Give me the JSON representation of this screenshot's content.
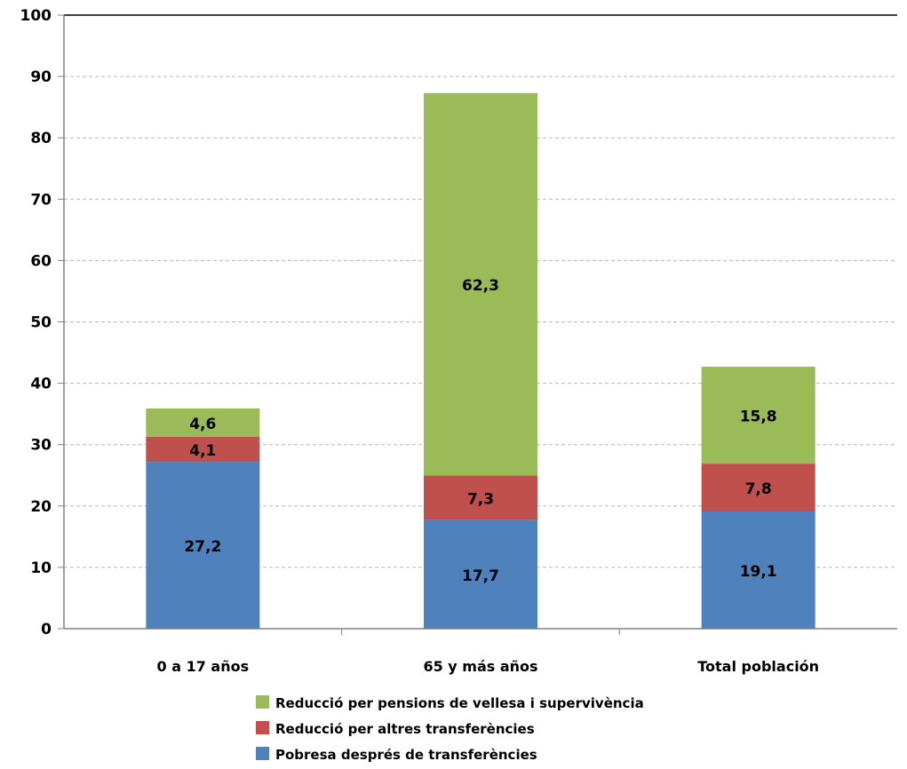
{
  "chart_data": {
    "type": "bar",
    "stacked": true,
    "categories": [
      "0 a 17 años",
      "65 y más años",
      "Total población"
    ],
    "series": [
      {
        "name": "Pobresa després de transferències",
        "color": "#4f81bd",
        "values": [
          27.2,
          17.7,
          19.1
        ]
      },
      {
        "name": "Reducció per altres transferències",
        "color": "#c0504d",
        "values": [
          4.1,
          7.3,
          7.8
        ]
      },
      {
        "name": "Reducció per pensions de vellesa i supervivència",
        "color": "#9bbb59",
        "values": [
          4.6,
          62.3,
          15.8
        ]
      }
    ],
    "value_labels": [
      [
        "27,2",
        "17,7",
        "19,1"
      ],
      [
        "4,1",
        "7,3",
        "7,8"
      ],
      [
        "4,6",
        "62,3",
        "15,8"
      ]
    ],
    "y_ticks": [
      "0",
      "10",
      "20",
      "30",
      "40",
      "50",
      "60",
      "70",
      "80",
      "90",
      "100"
    ],
    "ylim": [
      0,
      100
    ],
    "grid": true,
    "legend_position": "bottom",
    "legend_order": [
      2,
      1,
      0
    ]
  }
}
